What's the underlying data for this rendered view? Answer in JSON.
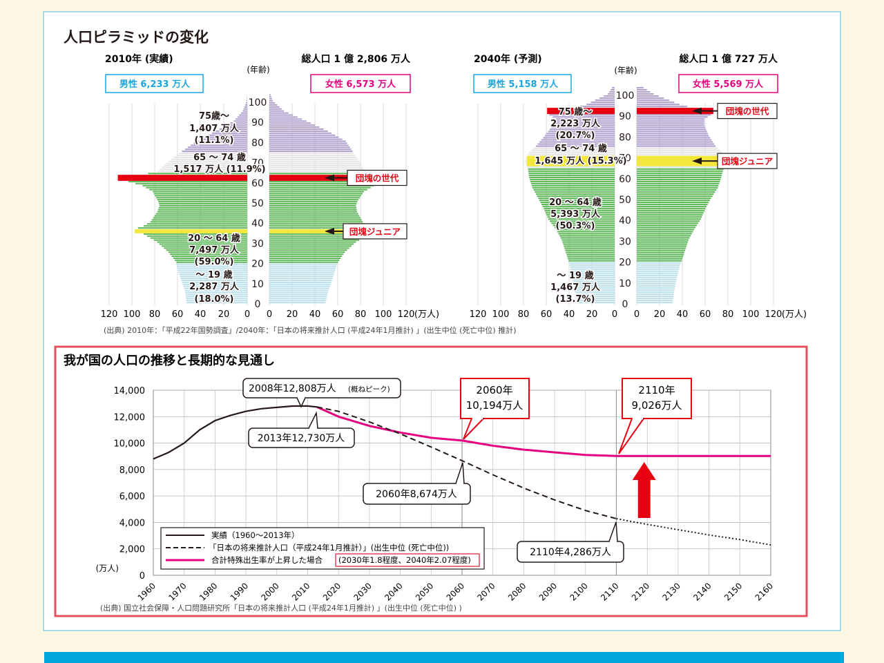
{
  "colors": {
    "accent": "#00a6de",
    "male": "#1aa5de",
    "female": "#e4007f",
    "red": "#e60012",
    "frame": "#e3515f",
    "green": "#62b85c",
    "purple": "#b0a3ce",
    "blue": "#bfe1ec",
    "gray": "#e6e6e6",
    "yellow": "#f3e73c",
    "pink": "#e4007f"
  },
  "top_title": "人口ピラミッドの変化",
  "pyramids": [
    {
      "year_label": "2010年 (実績)",
      "total_label": "総人口 1 億 2,806 万人",
      "male_label": "男性 6,233 万人",
      "female_label": "女性 6,573 万人",
      "age_axis_label": "(年齢)",
      "age_ticks": [
        "0",
        "10",
        "20",
        "30",
        "40",
        "50",
        "60",
        "70",
        "80",
        "90",
        "100"
      ],
      "x_ticks": [
        "120",
        "100",
        "80",
        "60",
        "40",
        "20",
        "0"
      ],
      "unit": "(万人)",
      "group_texts": {
        "g75": [
          "75歳～",
          "1,407 万人",
          "(11.1%)"
        ],
        "g65": [
          "65 ～ 74 歳",
          "1,517 万人 (11.9%)"
        ],
        "g20": [
          "20 ～ 64 歳",
          "7,497 万人",
          "(59.0%)"
        ],
        "g0": [
          "～ 19 歳",
          "2,287 万人",
          "(18.0%)"
        ]
      },
      "callouts": [
        "団塊の世代",
        "団塊ジュニア"
      ]
    },
    {
      "year_label": "2040年 (予測)",
      "total_label": "総人口 1 億 727 万人",
      "male_label": "男性 5,158 万人",
      "female_label": "女性 5,569 万人",
      "age_axis_label": "(年齢)",
      "age_ticks": [
        "0",
        "10",
        "20",
        "30",
        "40",
        "50",
        "60",
        "70",
        "80",
        "90",
        "100"
      ],
      "x_ticks": [
        "120",
        "100",
        "80",
        "60",
        "40",
        "20",
        "0"
      ],
      "unit": "(万人)",
      "group_texts": {
        "g75": [
          "75 歳～",
          "2,223 万人",
          "(20.7%)"
        ],
        "g65": [
          "65 ～ 74 歳",
          "1,645 万人 (15.3%)"
        ],
        "g20": [
          "20 ～ 64 歳",
          "5,393 万人",
          "(50.3%)"
        ],
        "g0": [
          "～ 19 歳",
          "1,467 万人",
          "(13.7%)"
        ]
      },
      "callouts": [
        "団塊の世代",
        "団塊ジュニア"
      ]
    }
  ],
  "top_source": "(出典) 2010年：「平成22年国勢調査」/2040年：「日本の将来推計人口 (平成24年1月推計) 」(出生中位 (死亡中位) 推計)",
  "chart_data": [
    {
      "type": "bar",
      "title": "人口ピラミッドの変化 2010年 (実績)",
      "xlabel": "(万人)",
      "ylabel": "(年齢)",
      "xlim": [
        0,
        120
      ],
      "ylim": [
        0,
        105
      ],
      "series": [
        {
          "name": "男性",
          "age_points": [
            [
              0,
              54
            ],
            [
              5,
              55
            ],
            [
              10,
              58
            ],
            [
              15,
              61
            ],
            [
              19,
              63
            ],
            [
              20,
              63
            ],
            [
              25,
              70
            ],
            [
              30,
              80
            ],
            [
              35,
              95
            ],
            [
              36,
              98
            ],
            [
              37,
              97
            ],
            [
              38,
              92
            ],
            [
              40,
              86
            ],
            [
              45,
              80
            ],
            [
              48,
              78
            ],
            [
              50,
              79
            ],
            [
              55,
              84
            ],
            [
              58,
              93
            ],
            [
              61,
              112
            ],
            [
              63,
              110
            ],
            [
              64,
              88
            ],
            [
              65,
              80
            ],
            [
              70,
              70
            ],
            [
              75,
              58
            ],
            [
              80,
              45
            ],
            [
              85,
              28
            ],
            [
              90,
              12
            ],
            [
              95,
              4
            ],
            [
              100,
              0.5
            ],
            [
              105,
              0
            ]
          ]
        },
        {
          "name": "女性",
          "age_points": [
            [
              0,
              50
            ],
            [
              5,
              52
            ],
            [
              10,
              55
            ],
            [
              15,
              58
            ],
            [
              19,
              60
            ],
            [
              20,
              61
            ],
            [
              25,
              67
            ],
            [
              30,
              77
            ],
            [
              35,
              91
            ],
            [
              36,
              94
            ],
            [
              37,
              93
            ],
            [
              38,
              88
            ],
            [
              40,
              83
            ],
            [
              45,
              78
            ],
            [
              48,
              77
            ],
            [
              50,
              78
            ],
            [
              55,
              84
            ],
            [
              58,
              93
            ],
            [
              61,
              110
            ],
            [
              63,
              108
            ],
            [
              64,
              90
            ],
            [
              65,
              85
            ],
            [
              70,
              80
            ],
            [
              75,
              74
            ],
            [
              80,
              68
            ],
            [
              85,
              52
            ],
            [
              90,
              33
            ],
            [
              95,
              13
            ],
            [
              100,
              3
            ],
            [
              105,
              0
            ]
          ]
        }
      ]
    },
    {
      "type": "bar",
      "title": "人口ピラミッドの変化 2040年 (予測)",
      "xlabel": "(万人)",
      "ylabel": "(年齢)",
      "xlim": [
        0,
        120
      ],
      "ylim": [
        0,
        105
      ],
      "series": [
        {
          "name": "男性",
          "age_points": [
            [
              0,
              33
            ],
            [
              5,
              35
            ],
            [
              10,
              37
            ],
            [
              15,
              39
            ],
            [
              19,
              40
            ],
            [
              20,
              41
            ],
            [
              25,
              44
            ],
            [
              30,
              47
            ],
            [
              35,
              52
            ],
            [
              40,
              59
            ],
            [
              45,
              63
            ],
            [
              50,
              68
            ],
            [
              55,
              73
            ],
            [
              60,
              76
            ],
            [
              64,
              77
            ],
            [
              65,
              78
            ],
            [
              68,
              80
            ],
            [
              70,
              78
            ],
            [
              72,
              76
            ],
            [
              75,
              70
            ],
            [
              80,
              62
            ],
            [
              85,
              55
            ],
            [
              88,
              52
            ],
            [
              90,
              58
            ],
            [
              92,
              55
            ],
            [
              93,
              42
            ],
            [
              95,
              25
            ],
            [
              100,
              6
            ],
            [
              105,
              0
            ]
          ]
        },
        {
          "name": "女性",
          "age_points": [
            [
              0,
              32
            ],
            [
              5,
              33
            ],
            [
              10,
              35
            ],
            [
              15,
              37
            ],
            [
              19,
              39
            ],
            [
              20,
              40
            ],
            [
              25,
              43
            ],
            [
              30,
              46
            ],
            [
              35,
              51
            ],
            [
              40,
              57
            ],
            [
              45,
              61
            ],
            [
              50,
              66
            ],
            [
              55,
              72
            ],
            [
              60,
              75
            ],
            [
              64,
              77
            ],
            [
              65,
              78
            ],
            [
              68,
              80
            ],
            [
              70,
              78
            ],
            [
              72,
              76
            ],
            [
              75,
              70
            ],
            [
              80,
              64
            ],
            [
              85,
              60
            ],
            [
              88,
              60
            ],
            [
              90,
              66
            ],
            [
              92,
              62
            ],
            [
              93,
              52
            ],
            [
              95,
              38
            ],
            [
              100,
              15
            ],
            [
              105,
              0
            ]
          ]
        }
      ]
    },
    {
      "type": "line",
      "title": "我が国の人口の推移と長期的な見通し",
      "xlabel": "",
      "ylabel": "(万人)",
      "x_ticks": [
        "1960",
        "1970",
        "1980",
        "1990",
        "2000",
        "2010",
        "2020",
        "2030",
        "2040",
        "2050",
        "2060",
        "2070",
        "2080",
        "2090",
        "2100",
        "2110",
        "2120",
        "2130",
        "2140",
        "2150",
        "2160"
      ],
      "y_ticks": [
        "14,000",
        "12,000",
        "10,000",
        "8,000",
        "6,000",
        "4,000",
        "2,000",
        "0"
      ],
      "xlim": [
        1960,
        2160
      ],
      "ylim": [
        0,
        14000
      ],
      "series": [
        {
          "name": "実績（1960～2013年）",
          "style": "solid",
          "points": [
            [
              1960,
              8800
            ],
            [
              1965,
              9300
            ],
            [
              1970,
              10000
            ],
            [
              1975,
              11000
            ],
            [
              1980,
              11700
            ],
            [
              1985,
              12100
            ],
            [
              1990,
              12400
            ],
            [
              1995,
              12600
            ],
            [
              2000,
              12700
            ],
            [
              2005,
              12800
            ],
            [
              2008,
              12808
            ],
            [
              2010,
              12806
            ],
            [
              2013,
              12730
            ]
          ]
        },
        {
          "name": "「日本の将来推計人口（平成24年1月推計）」(出生中位 (死亡中位))",
          "style": "dashed",
          "points": [
            [
              2013,
              12730
            ],
            [
              2020,
              12400
            ],
            [
              2030,
              11600
            ],
            [
              2040,
              10700
            ],
            [
              2050,
              9700
            ],
            [
              2060,
              8674
            ],
            [
              2070,
              7600
            ],
            [
              2080,
              6600
            ],
            [
              2090,
              5700
            ],
            [
              2100,
              4900
            ],
            [
              2110,
              4286
            ],
            [
              2120,
              3850
            ],
            [
              2130,
              3450
            ],
            [
              2140,
              3050
            ],
            [
              2150,
              2700
            ],
            [
              2160,
              2300
            ]
          ]
        },
        {
          "name": "合計特殊出生率が上昇した場合",
          "style": "pink",
          "points": [
            [
              2013,
              12730
            ],
            [
              2020,
              12000
            ],
            [
              2030,
              11300
            ],
            [
              2040,
              10800
            ],
            [
              2050,
              10400
            ],
            [
              2060,
              10194
            ],
            [
              2070,
              9800
            ],
            [
              2080,
              9500
            ],
            [
              2090,
              9300
            ],
            [
              2100,
              9100
            ],
            [
              2110,
              9026
            ],
            [
              2120,
              9026
            ],
            [
              2130,
              9026
            ],
            [
              2140,
              9026
            ],
            [
              2150,
              9026
            ],
            [
              2160,
              9026
            ]
          ]
        }
      ],
      "annotations": [
        "2008年12,808万人(概ねピーク)",
        "2013年12,730万人",
        "2060年\n10,194万人",
        "2110年\n9,026万人",
        "2060年8,674万人",
        "2110年4,286万人"
      ],
      "legend_extra": "(2030年1.8程度、2040年2.07程度)"
    }
  ],
  "bottom_title": "我が国の人口の推移と長期的な見通し",
  "bottom_source": "(出典) 国立社会保障・人口問題研究所「日本の将来推計人口 (平成24年1月推計) 」(出生中位 (死亡中位) )",
  "line_labels": {
    "peak": "2008年12,808万人",
    "peak_small": "(概ねピーク)",
    "a2013": "2013年12,730万人",
    "p2060_year": "2060年",
    "p2060_val": "10,194万人",
    "p2110_year": "2110年",
    "p2110_val": "9,026万人",
    "d2060": "2060年8,674万人",
    "d2110": "2110年4,286万人",
    "leg1": "実績（1960～2013年）",
    "leg2": "「日本の将来推計人口（平成24年1月推計）」(出生中位 (死亡中位))",
    "leg3": "合計特殊出生率が上昇した場合",
    "leg3b": "(2030年1.8程度、2040年2.07程度)"
  }
}
